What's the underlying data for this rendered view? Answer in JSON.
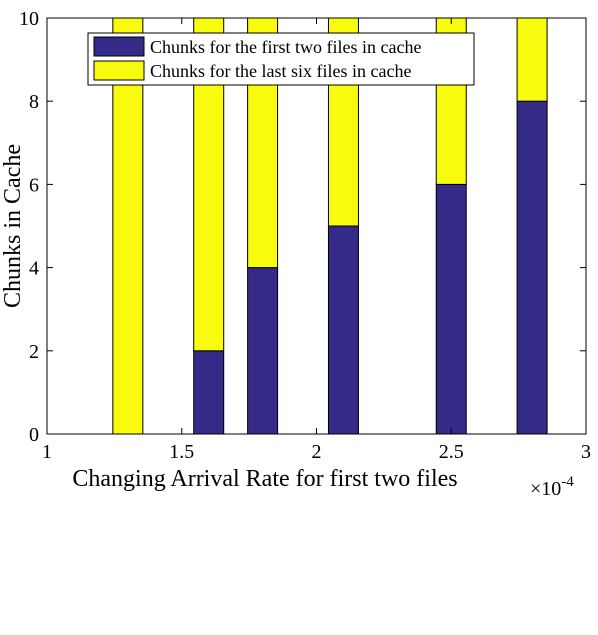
{
  "chart_data": {
    "type": "bar",
    "stacked": true,
    "x": [
      1.3,
      1.6,
      1.8,
      2.1,
      2.5,
      2.8
    ],
    "x_scale_note": "×10^-4",
    "xlim": [
      1,
      3
    ],
    "ylim": [
      0,
      10
    ],
    "xticks": [
      "1",
      "1.5",
      "2",
      "2.5",
      "3"
    ],
    "yticks": [
      "0",
      "2",
      "4",
      "6",
      "8",
      "10"
    ],
    "xlabel": "Changing Arrival Rate for first two files",
    "ylabel": "Chunks in Cache",
    "x_multiplier_base": "×10",
    "x_multiplier_exp": "-4",
    "legend_position": "top",
    "grid": false,
    "series": [
      {
        "name": "Chunks for the first two files in cache",
        "color": "#352a87",
        "values": [
          0,
          2,
          4,
          5,
          6,
          8
        ]
      },
      {
        "name": "Chunks for the last six files in cache",
        "color": "#f9fb0e",
        "values": [
          10,
          8,
          6,
          5,
          4,
          2
        ]
      }
    ]
  }
}
